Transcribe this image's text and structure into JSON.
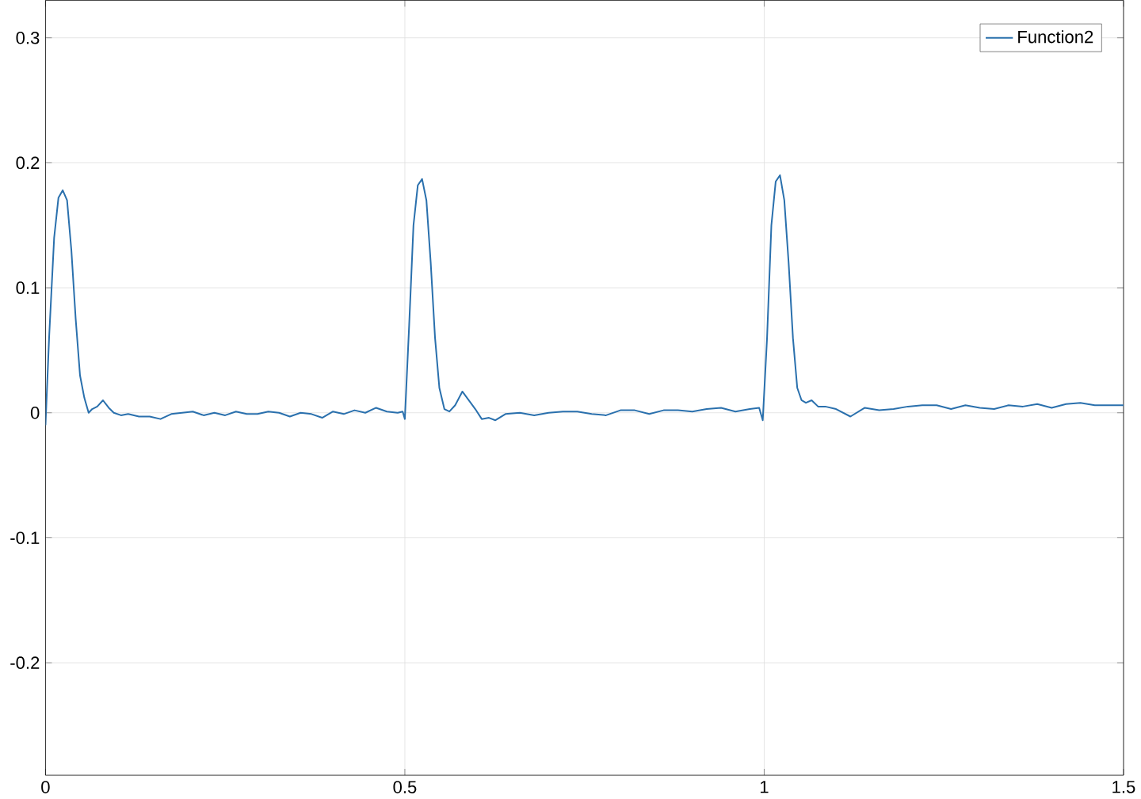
{
  "chart_data": {
    "type": "line",
    "xlim": [
      0,
      1.5
    ],
    "ylim": [
      -0.29,
      0.33
    ],
    "xticks": [
      0,
      0.5,
      1,
      1.5
    ],
    "yticks": [
      -0.2,
      -0.1,
      0,
      0.1,
      0.2,
      0.3
    ],
    "grid": true,
    "legend": "top right",
    "marker": "none",
    "line_style": "solid",
    "series": [
      {
        "name": "Function2",
        "color": "#2a70ad",
        "x": [
          0,
          0.005,
          0.012,
          0.018,
          0.024,
          0.03,
          0.036,
          0.042,
          0.048,
          0.054,
          0.06,
          0.065,
          0.072,
          0.08,
          0.088,
          0.095,
          0.105,
          0.115,
          0.13,
          0.145,
          0.16,
          0.175,
          0.19,
          0.205,
          0.22,
          0.235,
          0.25,
          0.265,
          0.28,
          0.295,
          0.31,
          0.325,
          0.34,
          0.355,
          0.37,
          0.385,
          0.4,
          0.415,
          0.43,
          0.445,
          0.46,
          0.475,
          0.49,
          0.497,
          0.5,
          0.506,
          0.512,
          0.518,
          0.524,
          0.53,
          0.536,
          0.542,
          0.548,
          0.555,
          0.562,
          0.57,
          0.58,
          0.589,
          0.598,
          0.607,
          0.617,
          0.626,
          0.64,
          0.66,
          0.68,
          0.7,
          0.72,
          0.74,
          0.76,
          0.78,
          0.8,
          0.82,
          0.84,
          0.86,
          0.88,
          0.9,
          0.92,
          0.94,
          0.96,
          0.98,
          0.993,
          0.998,
          1.004,
          1.01,
          1.016,
          1.022,
          1.028,
          1.034,
          1.04,
          1.046,
          1.052,
          1.058,
          1.066,
          1.075,
          1.085,
          1.1,
          1.12,
          1.14,
          1.16,
          1.18,
          1.2,
          1.22,
          1.24,
          1.26,
          1.28,
          1.3,
          1.32,
          1.34,
          1.36,
          1.38,
          1.4,
          1.42,
          1.44,
          1.46,
          1.48,
          1.5
        ],
        "values": [
          -0.01,
          0.06,
          0.14,
          0.172,
          0.178,
          0.17,
          0.13,
          0.075,
          0.03,
          0.012,
          0.0,
          0.003,
          0.005,
          0.01,
          0.004,
          0.0,
          -0.002,
          -0.001,
          -0.003,
          -0.003,
          -0.005,
          -0.001,
          0.0,
          0.001,
          -0.002,
          0.0,
          -0.002,
          0.001,
          -0.001,
          -0.001,
          0.001,
          0.0,
          -0.003,
          0.0,
          -0.001,
          -0.004,
          0.001,
          -0.001,
          0.002,
          0.0,
          0.004,
          0.001,
          0.0,
          0.001,
          -0.005,
          0.07,
          0.15,
          0.182,
          0.187,
          0.17,
          0.12,
          0.06,
          0.02,
          0.003,
          0.001,
          0.006,
          0.017,
          0.01,
          0.003,
          -0.005,
          -0.004,
          -0.006,
          -0.001,
          0.0,
          -0.002,
          0.0,
          0.001,
          0.001,
          -0.001,
          -0.002,
          0.002,
          0.002,
          -0.001,
          0.002,
          0.002,
          0.001,
          0.003,
          0.004,
          0.001,
          0.003,
          0.004,
          -0.006,
          0.06,
          0.15,
          0.185,
          0.19,
          0.17,
          0.12,
          0.06,
          0.02,
          0.01,
          0.008,
          0.01,
          0.005,
          0.005,
          0.003,
          -0.003,
          0.004,
          0.002,
          0.003,
          0.005,
          0.006,
          0.006,
          0.003,
          0.006,
          0.004,
          0.003,
          0.006,
          0.005,
          0.007,
          0.004,
          0.007,
          0.008,
          0.006,
          0.006,
          0.006
        ]
      }
    ]
  }
}
